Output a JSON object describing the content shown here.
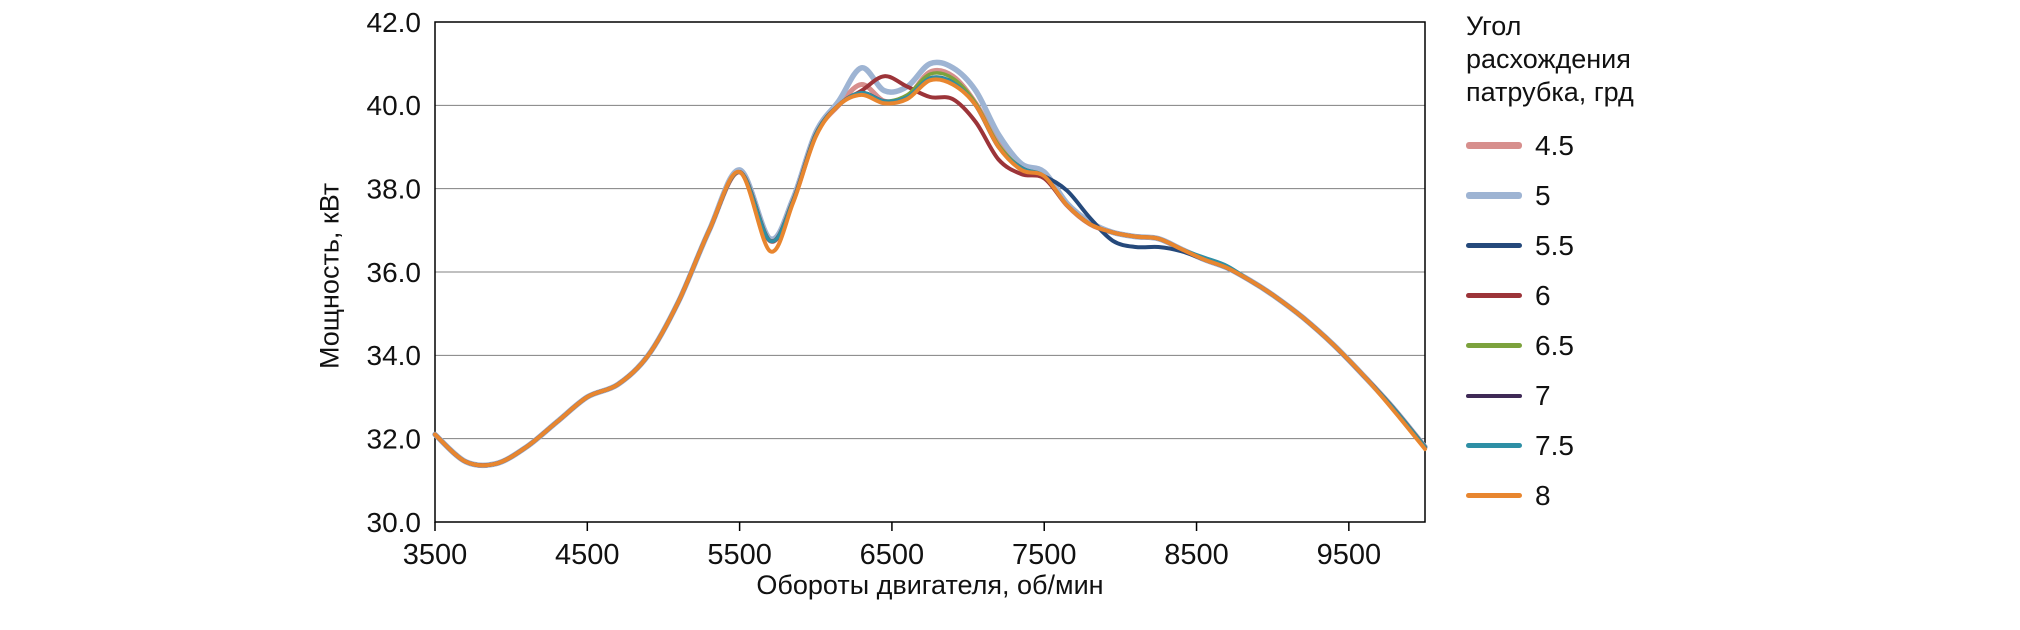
{
  "chart_data": {
    "type": "line",
    "title": "",
    "xlabel": "Обороты двигателя, об/мин",
    "ylabel": "Мощность, кВт",
    "xlim": [
      3500,
      10000
    ],
    "ylim": [
      30.0,
      42.0
    ],
    "x_ticks": [
      3500,
      4500,
      5500,
      6500,
      7500,
      8500,
      9500
    ],
    "y_ticks": [
      30.0,
      32.0,
      34.0,
      36.0,
      38.0,
      40.0,
      42.0
    ],
    "grid": "horizontal",
    "legend": {
      "position": "right",
      "title": "Угол расхождения патрубка, грд",
      "title_lines": [
        "Угол",
        "расхождения",
        "патрубка, грд"
      ]
    },
    "x": [
      3500,
      3700,
      3900,
      4100,
      4300,
      4500,
      4700,
      4900,
      5100,
      5300,
      5500,
      5700,
      5850,
      6000,
      6150,
      6300,
      6450,
      6600,
      6750,
      6900,
      7050,
      7200,
      7350,
      7500,
      7650,
      7800,
      7950,
      8100,
      8250,
      8400,
      8550,
      8700,
      8850,
      9000,
      9200,
      9400,
      9600,
      9800,
      10000
    ],
    "series": [
      {
        "name": "4.5",
        "color": "#D78F8D",
        "width": 5,
        "values": [
          32.1,
          31.45,
          31.4,
          31.8,
          32.4,
          33.0,
          33.3,
          34.0,
          35.3,
          37.0,
          38.4,
          36.75,
          37.7,
          39.3,
          40.0,
          40.5,
          40.1,
          40.2,
          40.8,
          40.7,
          40.05,
          39.1,
          38.5,
          38.3,
          37.6,
          37.15,
          36.95,
          36.85,
          36.8,
          36.55,
          36.3,
          36.1,
          35.8,
          35.45,
          34.9,
          34.25,
          33.5,
          32.7,
          31.8
        ]
      },
      {
        "name": "5",
        "color": "#9EB4D3",
        "width": 5.5,
        "values": [
          32.1,
          31.45,
          31.4,
          31.8,
          32.4,
          33.0,
          33.3,
          34.0,
          35.3,
          37.0,
          38.45,
          36.8,
          37.75,
          39.35,
          40.1,
          40.9,
          40.35,
          40.45,
          41.0,
          40.9,
          40.35,
          39.3,
          38.6,
          38.4,
          37.65,
          37.2,
          36.95,
          36.85,
          36.8,
          36.55,
          36.3,
          36.1,
          35.8,
          35.45,
          34.9,
          34.25,
          33.5,
          32.7,
          31.8
        ]
      },
      {
        "name": "5.5",
        "color": "#25497B",
        "width": 4,
        "values": [
          32.1,
          31.45,
          31.4,
          31.8,
          32.4,
          33.0,
          33.3,
          34.0,
          35.3,
          37.0,
          38.4,
          36.75,
          37.7,
          39.3,
          40.0,
          40.3,
          40.1,
          40.2,
          40.65,
          40.55,
          40.0,
          39.0,
          38.5,
          38.3,
          37.95,
          37.3,
          36.75,
          36.6,
          36.6,
          36.5,
          36.3,
          36.1,
          35.8,
          35.45,
          34.9,
          34.25,
          33.5,
          32.7,
          31.8
        ]
      },
      {
        "name": "6",
        "color": "#9C3439",
        "width": 4,
        "values": [
          32.1,
          31.45,
          31.4,
          31.8,
          32.4,
          33.0,
          33.3,
          34.0,
          35.3,
          37.0,
          38.4,
          36.75,
          37.7,
          39.3,
          40.0,
          40.35,
          40.7,
          40.45,
          40.2,
          40.15,
          39.6,
          38.7,
          38.35,
          38.25,
          37.6,
          37.15,
          36.95,
          36.85,
          36.8,
          36.55,
          36.3,
          36.1,
          35.8,
          35.45,
          34.9,
          34.25,
          33.5,
          32.7,
          31.8
        ]
      },
      {
        "name": "6.5",
        "color": "#7CA23D",
        "width": 3.5,
        "values": [
          32.1,
          31.45,
          31.4,
          31.8,
          32.4,
          33.0,
          33.3,
          34.0,
          35.3,
          37.0,
          38.4,
          36.75,
          37.7,
          39.3,
          40.0,
          40.3,
          40.1,
          40.25,
          40.75,
          40.65,
          40.05,
          39.05,
          38.5,
          38.3,
          37.6,
          37.15,
          36.95,
          36.85,
          36.8,
          36.55,
          36.3,
          36.1,
          35.8,
          35.45,
          34.9,
          34.25,
          33.5,
          32.7,
          31.8
        ]
      },
      {
        "name": "7",
        "color": "#3F2A56",
        "width": 3,
        "values": [
          32.1,
          31.45,
          31.4,
          31.8,
          32.4,
          33.0,
          33.3,
          34.0,
          35.3,
          37.0,
          38.4,
          36.75,
          37.7,
          39.3,
          40.0,
          40.3,
          40.1,
          40.2,
          40.65,
          40.55,
          40.0,
          39.0,
          38.5,
          38.3,
          37.6,
          37.15,
          36.95,
          36.85,
          36.8,
          36.55,
          36.3,
          36.1,
          35.8,
          35.45,
          34.9,
          34.25,
          33.5,
          32.7,
          31.8
        ]
      },
      {
        "name": "7.5",
        "color": "#2E8FA5",
        "width": 3.5,
        "values": [
          32.1,
          31.45,
          31.4,
          31.8,
          32.4,
          33.0,
          33.3,
          34.0,
          35.3,
          37.0,
          38.4,
          36.75,
          37.7,
          39.3,
          40.0,
          40.3,
          40.1,
          40.2,
          40.65,
          40.55,
          40.0,
          39.0,
          38.5,
          38.3,
          37.6,
          37.15,
          36.95,
          36.85,
          36.8,
          36.55,
          36.35,
          36.15,
          35.8,
          35.45,
          34.9,
          34.25,
          33.5,
          32.7,
          31.8
        ]
      },
      {
        "name": "8",
        "color": "#E8862F",
        "width": 4,
        "values": [
          32.1,
          31.45,
          31.4,
          31.8,
          32.4,
          33.0,
          33.3,
          34.0,
          35.3,
          37.0,
          38.4,
          36.5,
          37.65,
          39.25,
          40.0,
          40.25,
          40.05,
          40.15,
          40.6,
          40.5,
          40.0,
          39.0,
          38.45,
          38.3,
          37.6,
          37.15,
          36.95,
          36.85,
          36.8,
          36.55,
          36.3,
          36.1,
          35.8,
          35.45,
          34.9,
          34.25,
          33.5,
          32.65,
          31.75
        ]
      }
    ],
    "style": {
      "grid_color": "#808080",
      "border_color": "#000000",
      "background": "#ffffff"
    }
  }
}
